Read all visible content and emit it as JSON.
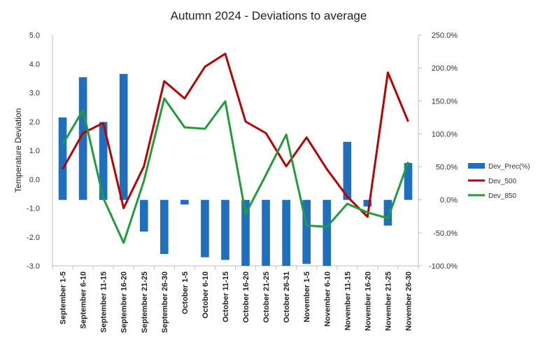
{
  "chart_data": {
    "type": "bar+line",
    "title": "Autumn 2024 - Deviations to average",
    "xlabel": "",
    "ylabel": "Temperature Deviation",
    "categories": [
      "September 1-5",
      "September 6-10",
      "September 11-15",
      "September 16-20",
      "September 21-25",
      "September 26-30",
      "October 1-5",
      "October 6-10",
      "October 11-15",
      "October 16-20",
      "October 21-25",
      "October 26-31",
      "November 1-5",
      "November 6-10",
      "November 11-15",
      "November 16-20",
      "November 21-25",
      "November 26-30"
    ],
    "y_left": {
      "min": -3.0,
      "max": 5.0,
      "step": 1.0,
      "ticks": [
        "5.0",
        "4.0",
        "3.0",
        "2.0",
        "1.0",
        "0.0",
        "-1.0",
        "-2.0",
        "-3.0"
      ]
    },
    "y_right": {
      "min": -100,
      "max": 250,
      "step": 50,
      "ticks": [
        "250.0%",
        "200.0%",
        "150.0%",
        "100.0%",
        "50.0%",
        "0.0%",
        "-50.0%",
        "-100.0%"
      ]
    },
    "series": [
      {
        "name": "Dev_Prec(%)",
        "type": "bar",
        "axis": "right",
        "color": "#1f6fbf",
        "values": [
          125,
          186,
          118,
          191,
          -48,
          -82,
          -7,
          -87,
          -91,
          -100,
          -100,
          -100,
          -97,
          -100,
          88,
          -10,
          -39,
          56
        ]
      },
      {
        "name": "Dev_500",
        "type": "line",
        "axis": "left",
        "color": "#c00000",
        "values": [
          0.35,
          1.6,
          1.95,
          -1.0,
          0.45,
          3.4,
          2.8,
          3.9,
          4.35,
          2.0,
          1.6,
          0.45,
          1.45,
          0.35,
          -0.6,
          -1.3,
          3.7,
          2.0
        ]
      },
      {
        "name": "Dev_850",
        "type": "line",
        "axis": "left",
        "color": "#1e9e3a",
        "values": [
          1.2,
          2.4,
          -0.65,
          -2.2,
          -0.05,
          2.8,
          1.8,
          1.75,
          2.7,
          -1.2,
          0.15,
          1.55,
          -1.6,
          -1.65,
          -0.85,
          -1.15,
          -1.35,
          0.6
        ]
      }
    ],
    "legend": {
      "position": "right",
      "entries": [
        "Dev_Prec(%)",
        "Dev_500",
        "Dev_850"
      ]
    },
    "grid": false
  }
}
